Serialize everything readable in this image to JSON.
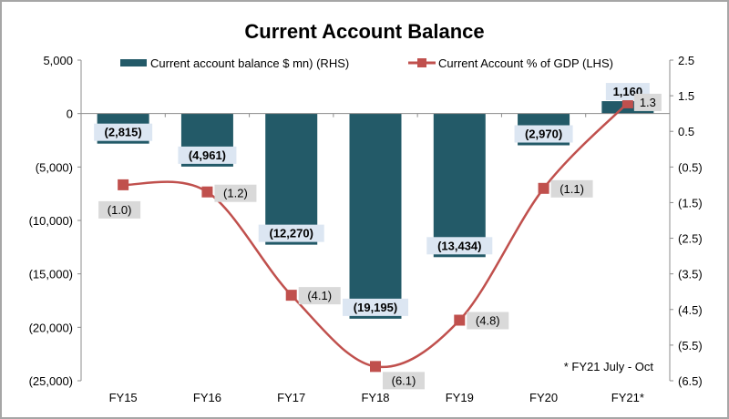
{
  "chart_data": {
    "type": "bar+line",
    "title": "Current Account Balance",
    "categories": [
      "FY15",
      "FY16",
      "FY17",
      "FY18",
      "FY19",
      "FY20",
      "FY21*"
    ],
    "series": [
      {
        "name": "Current account balance $ mn) (RHS)",
        "type": "bar",
        "axis": "left",
        "color": "#235a68",
        "values": [
          -2815,
          -4961,
          -12270,
          -19195,
          -13434,
          -2970,
          1160
        ],
        "labels": [
          "(2,815)",
          "(4,961)",
          "(12,270)",
          "(19,195)",
          "(13,434)",
          "(2,970)",
          "1,160"
        ]
      },
      {
        "name": "Current Account  % of GDP (LHS)",
        "type": "line",
        "axis": "right",
        "color": "#c0504d",
        "values": [
          -1.0,
          -1.2,
          -4.1,
          -6.1,
          -4.8,
          -1.1,
          1.3
        ],
        "labels": [
          "(1.0)",
          "(1.2)",
          "(4.1)",
          "(6.1)",
          "(4.8)",
          "(1.1)",
          "1.3"
        ]
      }
    ],
    "left_axis": {
      "ylim": [
        -25000,
        5000
      ],
      "ticks": [
        "5,000",
        "0",
        "(5,000)",
        "(10,000)",
        "(15,000)",
        "(20,000)",
        "(25,000)"
      ]
    },
    "right_axis": {
      "ylim": [
        -6.5,
        2.5
      ],
      "ticks": [
        "2.5",
        "1.5",
        "0.5",
        "(0.5)",
        "(1.5)",
        "(2.5)",
        "(3.5)",
        "(4.5)",
        "(5.5)",
        "(6.5)"
      ]
    },
    "xlabel": "",
    "ylabel": "",
    "legend_position": "top",
    "grid": false,
    "annotation": "* FY21 July - Oct"
  },
  "colors": {
    "bar": "#235a68",
    "bar_label_bg": "#dce6f2",
    "line": "#c0504d",
    "line_label_bg": "#d9d9d9",
    "axis": "#8c8c8c"
  }
}
